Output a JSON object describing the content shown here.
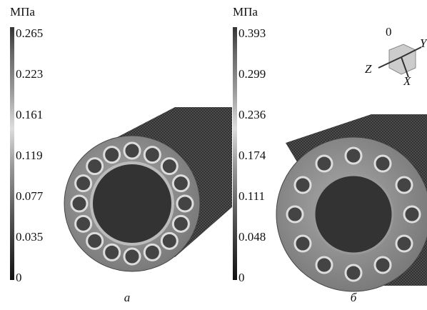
{
  "panels": [
    {
      "unit": "МПа",
      "ticks": [
        0.265,
        0.223,
        0.161,
        0.119,
        0.077,
        0.035,
        0
      ],
      "label": "а"
    },
    {
      "unit": "МПа",
      "ticks": [
        0.393,
        0.299,
        0.236,
        0.174,
        0.111,
        0.048,
        0
      ],
      "label": "б"
    }
  ],
  "axes": {
    "origin": "0",
    "y": "Y",
    "z": "Z",
    "x": "X"
  }
}
